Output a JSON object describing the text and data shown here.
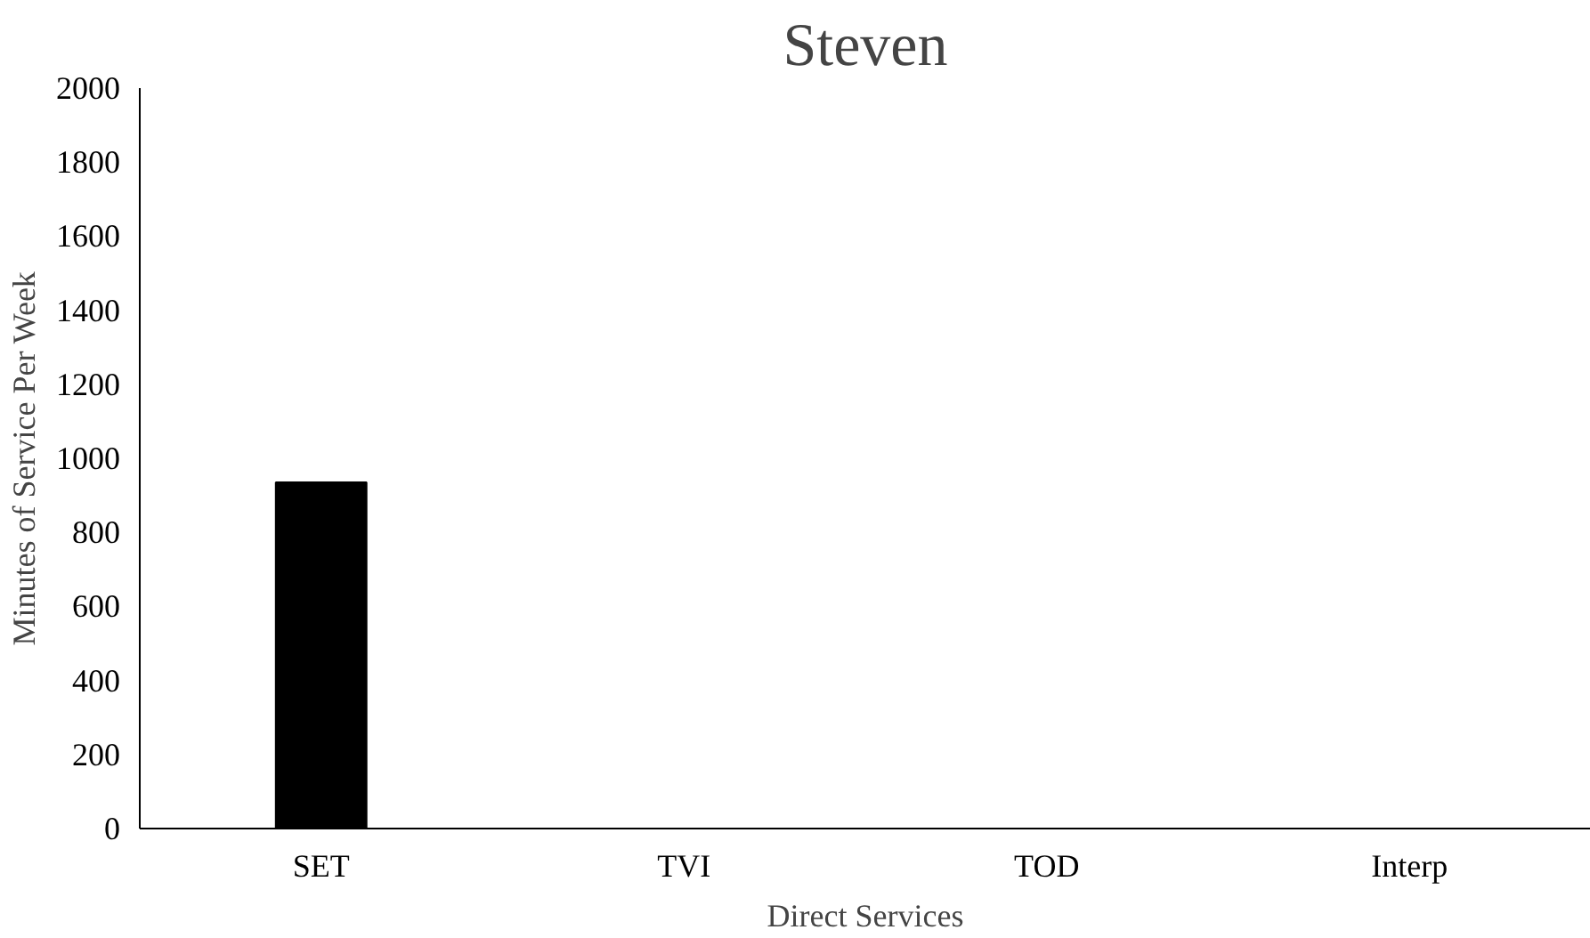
{
  "chart_data": {
    "type": "bar",
    "title": "Steven",
    "xlabel": "Direct Services",
    "ylabel": "Minutes of Service Per Week",
    "categories": [
      "SET",
      "TVI",
      "TOD",
      "Interp"
    ],
    "values": [
      935,
      0,
      0,
      0
    ],
    "color": "#000000",
    "ylim": [
      0,
      2000
    ],
    "yticks": [
      0,
      200,
      400,
      600,
      800,
      1000,
      1200,
      1400,
      1600,
      1800,
      2000
    ],
    "grid": false
  }
}
